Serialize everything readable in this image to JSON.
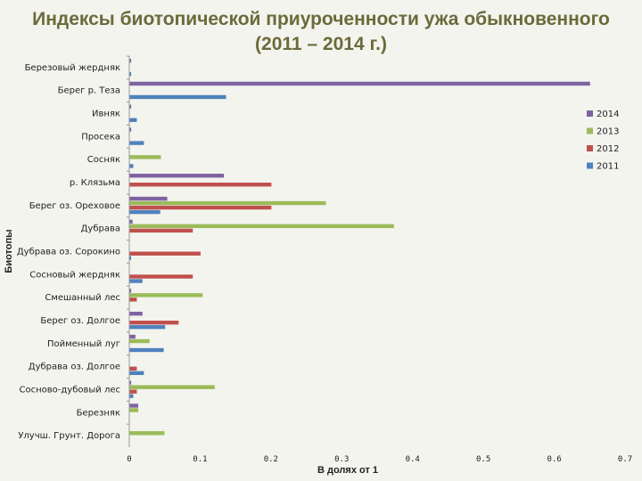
{
  "page": {
    "title_line1": "Индексы биотопической приуроченности ужа обыкновенного",
    "title_line2": "(2011 – 2014 г.)"
  },
  "chart_data": {
    "type": "bar",
    "orientation": "horizontal",
    "title": "Индексы биотопической приуроченности ужа обыкновенного (2011 – 2014 г.)",
    "xlabel": "В долях от 1",
    "ylabel": "Биотопы",
    "xlim": [
      0,
      0.7
    ],
    "xticks": [
      "0",
      "0.1",
      "0.2",
      "0.3",
      "0.4",
      "0.5",
      "0.6",
      "0.7"
    ],
    "categories": [
      "Березовый жердняк",
      "Берег р. Теза",
      "Ивняк",
      "Просека",
      "Сосняк",
      "р. Клязьма",
      "Берег оз. Ореховое",
      "Дубрава",
      "Дубрава оз. Сорокино",
      "Сосновый жердняк",
      "Смешанный лес",
      "Берег оз. Долгое",
      "Пойменный луг",
      "Дубрава оз. Долгое",
      "Сосново-дубовый лес",
      "Березняк",
      "Улучш. Грунт. Дорога"
    ],
    "series": [
      {
        "name": "2014",
        "color": "#7f63a1",
        "values": [
          0.002,
          0.65,
          0.002,
          0.002,
          0,
          0.133,
          0.053,
          0.004,
          0,
          0,
          0.002,
          0.018,
          0.008,
          0,
          0.002,
          0.012,
          0
        ]
      },
      {
        "name": "2013",
        "color": "#9bbb59",
        "values": [
          0,
          0,
          0,
          0,
          0.044,
          0,
          0.277,
          0.373,
          0,
          0,
          0.103,
          0,
          0.028,
          0,
          0.12,
          0.012,
          0.049
        ]
      },
      {
        "name": "2012",
        "color": "#c0504d",
        "values": [
          0,
          0,
          0,
          0,
          0,
          0.2,
          0.2,
          0.089,
          0.1,
          0.089,
          0.01,
          0.069,
          0,
          0.01,
          0.01,
          0,
          0
        ]
      },
      {
        "name": "2011",
        "color": "#4f81bd",
        "values": [
          0.002,
          0.136,
          0.01,
          0.02,
          0.005,
          0,
          0.043,
          0,
          0.002,
          0.018,
          0,
          0.05,
          0.048,
          0.02,
          0.005,
          0,
          0
        ]
      }
    ],
    "legend": {
      "entries": [
        "2014",
        "2013",
        "2012",
        "2011"
      ],
      "position": "right"
    }
  }
}
